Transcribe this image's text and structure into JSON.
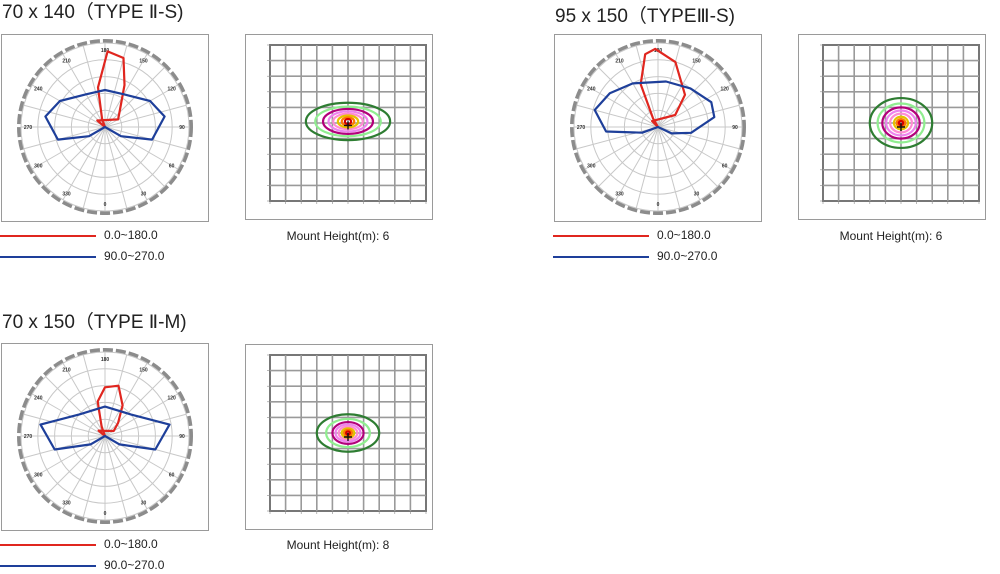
{
  "colors": {
    "red": "#e0261f",
    "blue": "#1e3f9a",
    "grid": "#c8c8c8",
    "frame": "#777777"
  },
  "chart_data": [
    {
      "type": "polar",
      "title": "70 x 140（TYPE Ⅱ-S)",
      "angle_labels": [
        "180",
        "150",
        "120",
        "90",
        "60",
        "30",
        "0",
        "330",
        "300",
        "270",
        "240",
        "210"
      ],
      "series": [
        {
          "name": "0.0~180.0",
          "color": "#e0261f",
          "points": [
            [
              -160,
              0.1
            ],
            [
              -170,
              0.48
            ],
            [
              178,
              0.9
            ],
            [
              165,
              0.85
            ],
            [
              155,
              0.55
            ],
            [
              140,
              0.28
            ],
            [
              120,
              0.18
            ],
            [
              -130,
              0.12
            ]
          ]
        },
        {
          "name": "90.0~270.0",
          "color": "#1e3f9a",
          "points": [
            [
              -60,
              0.22
            ],
            [
              -75,
              0.58
            ],
            [
              -100,
              0.72
            ],
            [
              -120,
              0.62
            ],
            [
              -150,
              0.45
            ],
            [
              180,
              0.44
            ],
            [
              150,
              0.45
            ],
            [
              120,
              0.62
            ],
            [
              100,
              0.72
            ],
            [
              75,
              0.58
            ],
            [
              60,
              0.22
            ]
          ]
        }
      ]
    },
    {
      "type": "isolux",
      "caption": "Mount Height(m): 6",
      "center": [
        0.0,
        0.1
      ],
      "contours": [
        {
          "color": "#2e7d32",
          "rx": 2.7,
          "ry": 1.2
        },
        {
          "color": "#90ee90",
          "rx": 2.1,
          "ry": 0.95
        },
        {
          "color": "#b3007a",
          "rx": 1.6,
          "ry": 0.8
        },
        {
          "color": "#ee82ee",
          "rx": 1.25,
          "ry": 0.65
        },
        {
          "color": "#ff8cd2",
          "rx": 0.95,
          "ry": 0.5
        },
        {
          "color": "#e5c100",
          "rx": 0.65,
          "ry": 0.38
        },
        {
          "color": "#ff7a00",
          "rx": 0.4,
          "ry": 0.26
        },
        {
          "color": "#d40000",
          "rx": 0.2,
          "ry": 0.16
        }
      ]
    },
    {
      "type": "polar",
      "title": "95 x 150（TYPEⅢ-S)",
      "angle_labels": [
        "180",
        "150",
        "120",
        "90",
        "60",
        "30",
        "0",
        "330",
        "300",
        "270",
        "240",
        "210"
      ],
      "series": [
        {
          "name": "0.0~180.0",
          "color": "#e0261f",
          "points": [
            [
              -150,
              0.12
            ],
            [
              -158,
              0.55
            ],
            [
              -170,
              0.88
            ],
            [
              -178,
              0.93
            ],
            [
              165,
              0.8
            ],
            [
              140,
              0.5
            ],
            [
              125,
              0.25
            ],
            [
              -135,
              0.1
            ]
          ]
        },
        {
          "name": "90.0~270.0",
          "color": "#1e3f9a",
          "points": [
            [
              -70,
              0.2
            ],
            [
              -85,
              0.62
            ],
            [
              -105,
              0.78
            ],
            [
              -125,
              0.7
            ],
            [
              -150,
              0.6
            ],
            [
              170,
              0.55
            ],
            [
              140,
              0.6
            ],
            [
              115,
              0.7
            ],
            [
              100,
              0.68
            ],
            [
              80,
              0.4
            ],
            [
              65,
              0.18
            ]
          ]
        }
      ]
    },
    {
      "type": "isolux",
      "caption": "Mount Height(m): 6",
      "center": [
        0.0,
        0.0
      ],
      "contours": [
        {
          "color": "#2e7d32",
          "rx": 2.0,
          "ry": 1.6
        },
        {
          "color": "#90ee90",
          "rx": 1.5,
          "ry": 1.25
        },
        {
          "color": "#b3007a",
          "rx": 1.2,
          "ry": 1.0
        },
        {
          "color": "#ee82ee",
          "rx": 0.95,
          "ry": 0.8
        },
        {
          "color": "#ff8cd2",
          "rx": 0.7,
          "ry": 0.6
        },
        {
          "color": "#e5c100",
          "rx": 0.45,
          "ry": 0.4
        },
        {
          "color": "#ff7a00",
          "rx": 0.28,
          "ry": 0.25
        },
        {
          "color": "#d40000",
          "rx": 0.14,
          "ry": 0.13
        }
      ]
    },
    {
      "type": "polar",
      "title": "70 x 150（TYPE Ⅱ-M)",
      "angle_labels": [
        "180",
        "150",
        "120",
        "90",
        "60",
        "30",
        "0",
        "330",
        "300",
        "270",
        "240",
        "210"
      ],
      "series": [
        {
          "name": "0.0~180.0",
          "color": "#e0261f",
          "points": [
            [
              -160,
              0.12
            ],
            [
              -168,
              0.42
            ],
            [
              180,
              0.58
            ],
            [
              165,
              0.62
            ],
            [
              150,
              0.42
            ],
            [
              135,
              0.22
            ],
            [
              120,
              0.12
            ],
            [
              -130,
              0.1
            ]
          ]
        },
        {
          "name": "90.0~270.0",
          "color": "#1e3f9a",
          "points": [
            [
              -60,
              0.2
            ],
            [
              -75,
              0.62
            ],
            [
              -100,
              0.78
            ],
            [
              -130,
              0.4
            ],
            [
              180,
              0.35
            ],
            [
              130,
              0.4
            ],
            [
              100,
              0.78
            ],
            [
              75,
              0.62
            ],
            [
              60,
              0.2
            ]
          ]
        }
      ]
    },
    {
      "type": "isolux",
      "caption": "Mount Height(m): 8",
      "center": [
        0.0,
        0.0
      ],
      "contours": [
        {
          "color": "#2e7d32",
          "rx": 2.0,
          "ry": 1.2
        },
        {
          "color": "#90ee90",
          "rx": 1.4,
          "ry": 0.9
        },
        {
          "color": "#b3007a",
          "rx": 1.0,
          "ry": 0.7
        },
        {
          "color": "#ee82ee",
          "rx": 0.8,
          "ry": 0.55
        },
        {
          "color": "#ff8cd2",
          "rx": 0.6,
          "ry": 0.42
        },
        {
          "color": "#e5c100",
          "rx": 0.4,
          "ry": 0.3
        },
        {
          "color": "#ff7a00",
          "rx": 0.25,
          "ry": 0.2
        },
        {
          "color": "#d40000",
          "rx": 0.12,
          "ry": 0.1
        }
      ]
    }
  ]
}
